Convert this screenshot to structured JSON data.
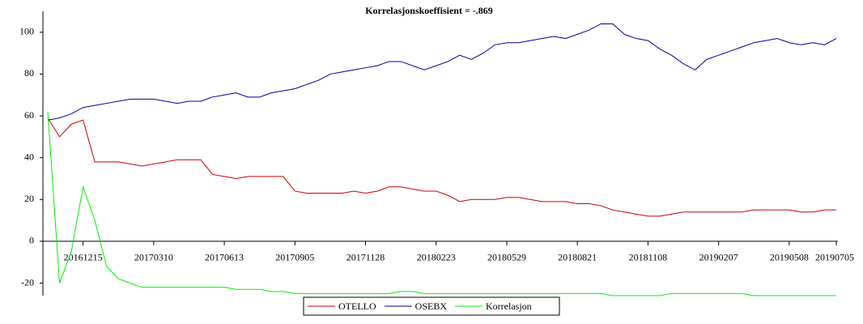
{
  "chart_data": {
    "type": "line",
    "title": "Korrelasjonskoeffisient =  -.869",
    "categories": [
      null,
      null,
      null,
      "20161215",
      null,
      null,
      null,
      null,
      null,
      "20170310",
      null,
      null,
      null,
      null,
      null,
      "20170613",
      null,
      null,
      null,
      null,
      null,
      "20170905",
      null,
      null,
      null,
      null,
      null,
      "20171128",
      null,
      null,
      null,
      null,
      null,
      "20180223",
      null,
      null,
      null,
      null,
      null,
      "20180529",
      null,
      null,
      null,
      null,
      null,
      "20180821",
      null,
      null,
      null,
      null,
      null,
      "20181108",
      null,
      null,
      null,
      null,
      null,
      "20190207",
      null,
      null,
      null,
      null,
      null,
      "20190508",
      null,
      null,
      null,
      "20190705"
    ],
    "series": [
      {
        "name": "OTELLO",
        "color": "#cc0000",
        "values": [
          59,
          50,
          56,
          58,
          38,
          38,
          38,
          37,
          36,
          37,
          38,
          39,
          39,
          39,
          32,
          31,
          30,
          31,
          31,
          31,
          31,
          24,
          23,
          23,
          23,
          23,
          24,
          23,
          24,
          26,
          26,
          25,
          24,
          24,
          22,
          19,
          20,
          20,
          20,
          21,
          21,
          20,
          19,
          19,
          19,
          18,
          18,
          17,
          15,
          14,
          13,
          12,
          12,
          13,
          14,
          14,
          14,
          14,
          14,
          14,
          15,
          15,
          15,
          15,
          14,
          14,
          15,
          15
        ]
      },
      {
        "name": "OSEBX",
        "color": "#000099",
        "values": [
          58,
          59,
          61,
          64,
          65,
          66,
          67,
          68,
          68,
          68,
          67,
          66,
          67,
          67,
          69,
          70,
          71,
          69,
          69,
          71,
          72,
          73,
          75,
          77,
          80,
          81,
          82,
          83,
          84,
          86,
          86,
          84,
          82,
          84,
          86,
          89,
          87,
          90,
          94,
          95,
          95,
          96,
          97,
          98,
          97,
          99,
          101,
          104,
          104,
          99,
          97,
          96,
          92,
          89,
          85,
          82,
          87,
          89,
          91,
          93,
          95,
          96,
          97,
          95,
          94,
          95,
          94,
          97
        ]
      },
      {
        "name": "Korrelasjon",
        "color": "#00ee00",
        "values": [
          62,
          -20,
          -5,
          26,
          10,
          -12,
          -18,
          -20,
          -22,
          -22,
          -22,
          -22,
          -22,
          -22,
          -22,
          -22,
          -23,
          -23,
          -23,
          -24,
          -24,
          -25,
          -25,
          -25,
          -25,
          -25,
          -25,
          -25,
          -25,
          -25,
          -24,
          -24,
          -25,
          -25,
          -25,
          -25,
          -25,
          -25,
          -25,
          -25,
          -25,
          -25,
          -25,
          -25,
          -25,
          -25,
          -25,
          -25,
          -26,
          -26,
          -26,
          -26,
          -26,
          -25,
          -25,
          -25,
          -25,
          -25,
          -25,
          -25,
          -26,
          -26,
          -26,
          -26,
          -26,
          -26,
          -26,
          -26
        ]
      }
    ],
    "ylim": [
      -26,
      110
    ],
    "yticks": [
      -20,
      0,
      20,
      40,
      60,
      80,
      100
    ]
  }
}
